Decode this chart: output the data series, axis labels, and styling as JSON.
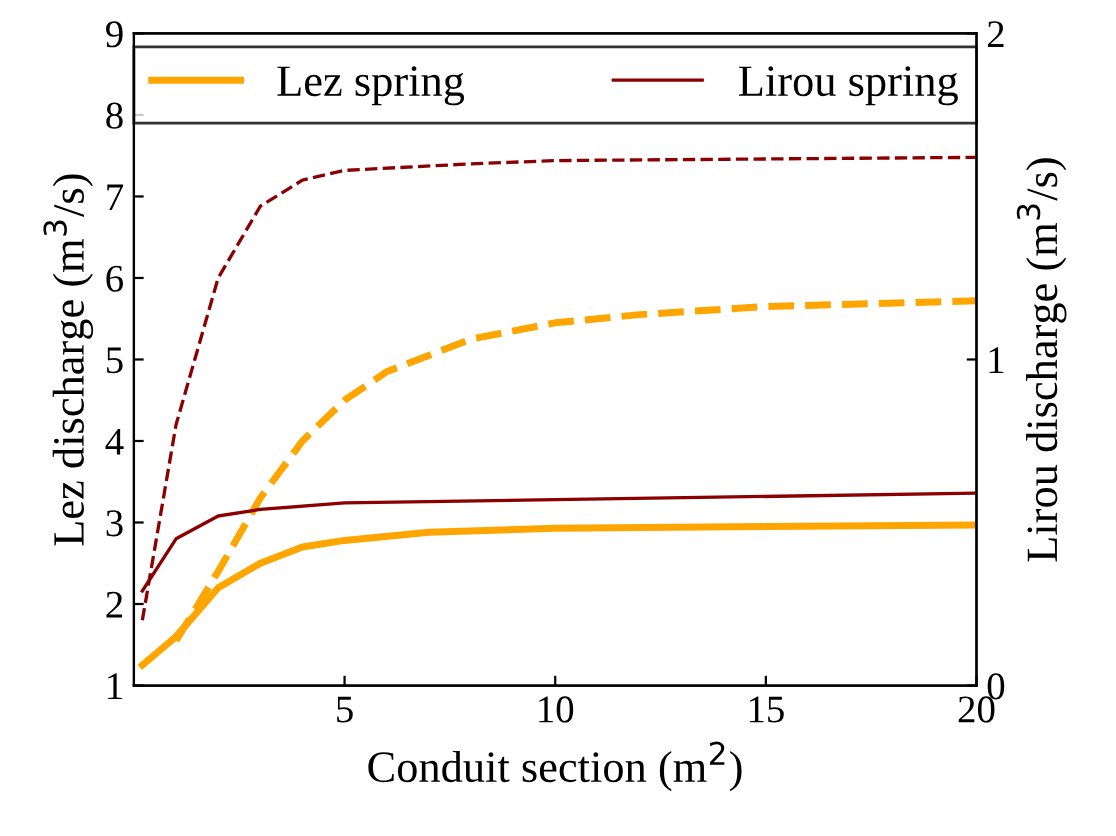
{
  "chart_data": {
    "type": "line",
    "xlabel": "Conduit section (m$^{2}$)",
    "ylabel": "Lez discharge (m$^{3}$/s)",
    "y2label": "Lirou discharge (m$^{3}$/s)",
    "xlim": [
      0,
      20
    ],
    "xticks": [
      5,
      10,
      15,
      20
    ],
    "ylim": [
      1,
      9
    ],
    "yticks": [
      1,
      2,
      3,
      4,
      5,
      6,
      7,
      8,
      9
    ],
    "y2lim": [
      0,
      2
    ],
    "y2ticks": [
      0,
      1,
      2
    ],
    "grid": false,
    "legend": "top",
    "marker": "none",
    "series": [
      {
        "name": "Lez spring",
        "color": "#ffa500",
        "line_style": "solid",
        "x": [
          0.2,
          1,
          2,
          3,
          4,
          5,
          7,
          10,
          15,
          20
        ],
        "values": [
          1.25,
          1.6,
          2.2,
          2.5,
          2.7,
          2.78,
          2.88,
          2.93,
          2.95,
          2.97
        ]
      },
      {
        "name": "Lirou spring",
        "color": "#8b0000",
        "line_style": "solid",
        "axis": "y2",
        "x": [
          0.2,
          1,
          2,
          3,
          5,
          10,
          20
        ],
        "values": [
          0.29,
          0.45,
          0.52,
          0.54,
          0.56,
          0.57,
          0.59
        ]
      },
      {
        "color": "#ffa500",
        "line_style": "dashed",
        "x": [
          1,
          2,
          3,
          4,
          5,
          6,
          8,
          10,
          12,
          15,
          20
        ],
        "values": [
          1.55,
          2.4,
          3.3,
          4.0,
          4.5,
          4.85,
          5.25,
          5.45,
          5.55,
          5.65,
          5.72
        ]
      },
      {
        "color": "#8b0000",
        "line_style": "dashed",
        "axis": "y2",
        "x": [
          0.2,
          1,
          2,
          3,
          4,
          5,
          8,
          10,
          20
        ],
        "values": [
          0.2,
          0.8,
          1.25,
          1.47,
          1.55,
          1.58,
          1.6,
          1.61,
          1.62
        ]
      }
    ]
  }
}
